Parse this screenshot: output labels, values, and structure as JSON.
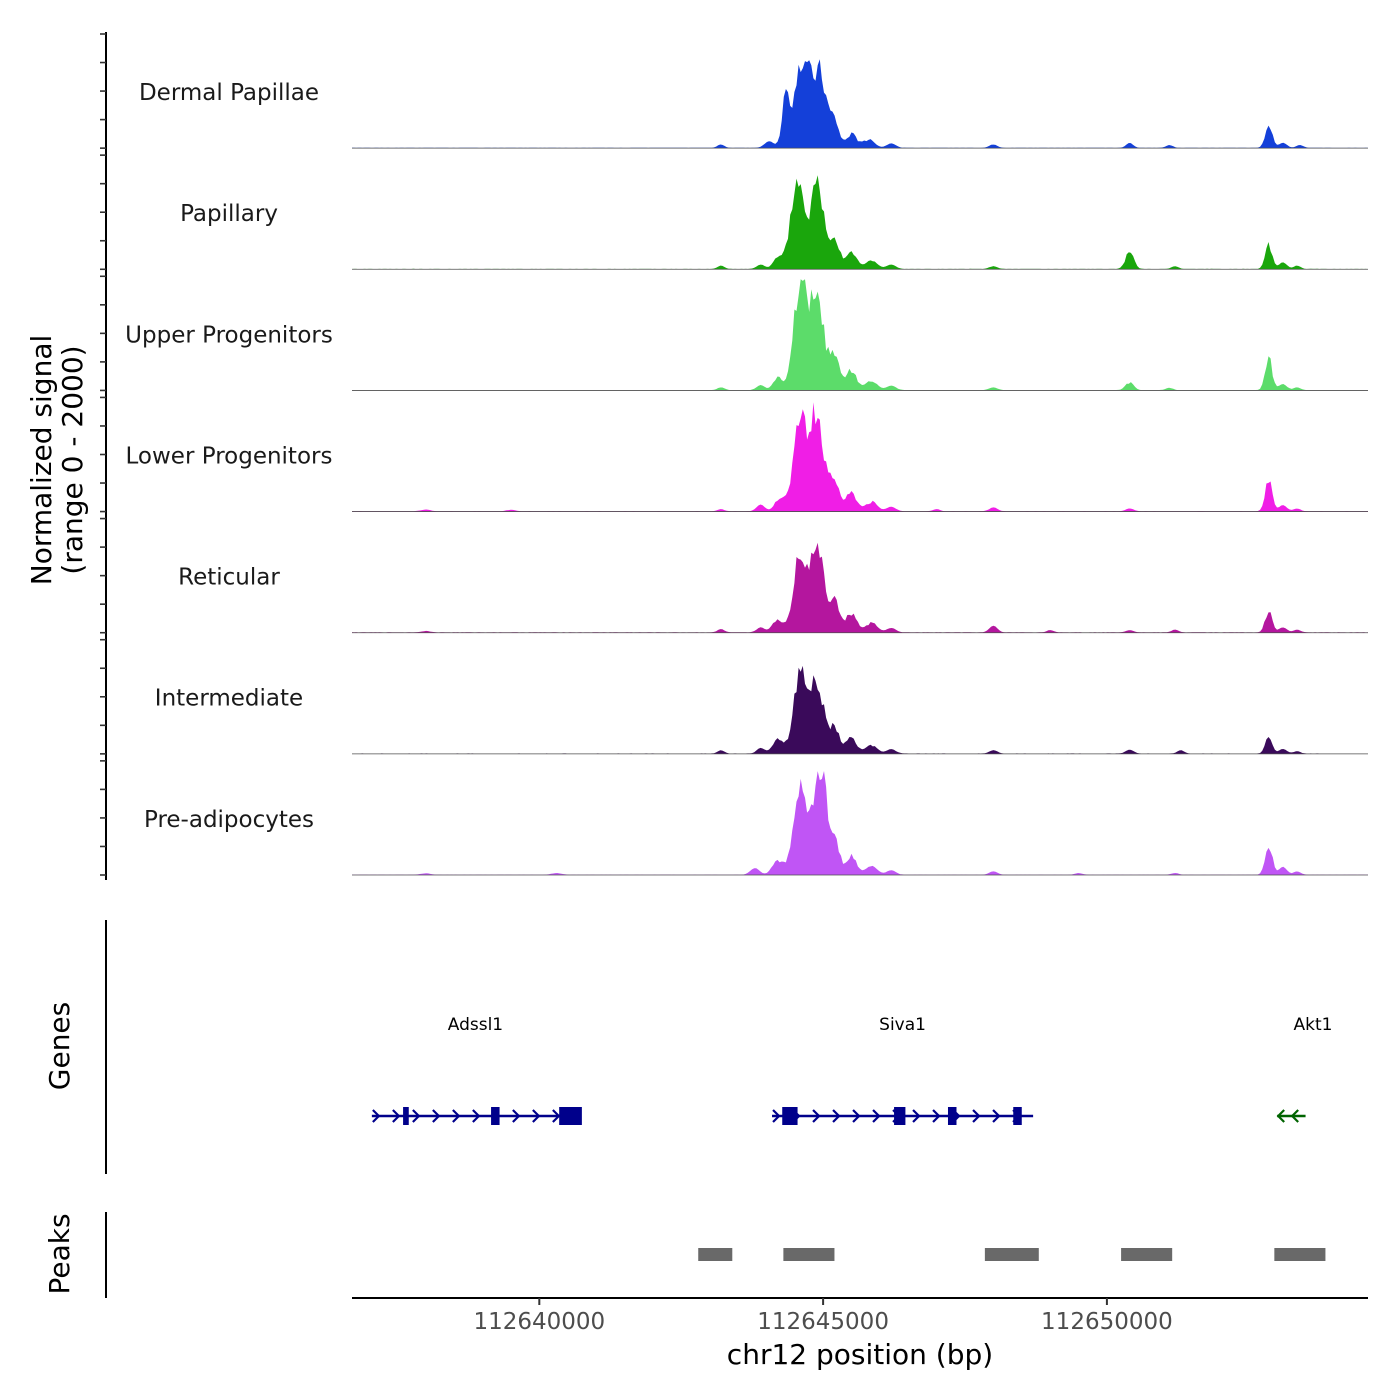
{
  "chart_data": {
    "type": "area",
    "region": {
      "chrom": "chr12",
      "start": 112636700,
      "end": 112654600
    },
    "ylim": [
      0,
      2000
    ],
    "ylabel": [
      "Normalized signal",
      "(range 0 - 2000)"
    ],
    "xlabel": "chr12 position (bp)",
    "x_ticks": [
      112640000,
      112645000,
      112650000
    ],
    "x_tick_labels": [
      "112640000",
      "112645000",
      "112650000"
    ],
    "series": [
      {
        "name": "Dermal Papillae",
        "color": "#1440d9",
        "peaks": [
          [
            112643200,
            60,
            60
          ],
          [
            112644050,
            120,
            80
          ],
          [
            112644350,
            950,
            70
          ],
          [
            112644650,
            1650,
            130
          ],
          [
            112644950,
            1350,
            110
          ],
          [
            112645200,
            500,
            80
          ],
          [
            112645500,
            260,
            90
          ],
          [
            112645800,
            160,
            100
          ],
          [
            112646200,
            80,
            80
          ],
          [
            112648000,
            60,
            70
          ],
          [
            112650400,
            90,
            60
          ],
          [
            112651100,
            50,
            60
          ],
          [
            112652850,
            450,
            60
          ],
          [
            112653100,
            90,
            70
          ],
          [
            112653400,
            50,
            60
          ]
        ]
      },
      {
        "name": "Papillary",
        "color": "#1aa60c",
        "peaks": [
          [
            112643200,
            60,
            60
          ],
          [
            112643900,
            80,
            70
          ],
          [
            112644200,
            200,
            80
          ],
          [
            112644550,
            1700,
            120
          ],
          [
            112644900,
            1650,
            110
          ],
          [
            112645200,
            600,
            90
          ],
          [
            112645500,
            340,
            90
          ],
          [
            112645850,
            160,
            100
          ],
          [
            112646200,
            80,
            80
          ],
          [
            112648000,
            50,
            70
          ],
          [
            112650400,
            350,
            70
          ],
          [
            112651200,
            50,
            60
          ],
          [
            112652850,
            450,
            60
          ],
          [
            112653100,
            120,
            70
          ],
          [
            112653350,
            60,
            60
          ]
        ]
      },
      {
        "name": "Upper Progenitors",
        "color": "#5cdc6a",
        "peaks": [
          [
            112643200,
            50,
            60
          ],
          [
            112643900,
            90,
            70
          ],
          [
            112644200,
            220,
            80
          ],
          [
            112644600,
            2000,
            120
          ],
          [
            112644900,
            1800,
            110
          ],
          [
            112645200,
            650,
            90
          ],
          [
            112645500,
            380,
            90
          ],
          [
            112645850,
            180,
            100
          ],
          [
            112646200,
            80,
            80
          ],
          [
            112648000,
            50,
            70
          ],
          [
            112650400,
            150,
            70
          ],
          [
            112651100,
            40,
            60
          ],
          [
            112652850,
            620,
            60
          ],
          [
            112653100,
            110,
            70
          ],
          [
            112653350,
            50,
            60
          ]
        ]
      },
      {
        "name": "Lower Progenitors",
        "color": "#f01ee6",
        "peaks": [
          [
            112638000,
            30,
            80
          ],
          [
            112639500,
            25,
            80
          ],
          [
            112643200,
            40,
            60
          ],
          [
            112643900,
            120,
            70
          ],
          [
            112644250,
            250,
            90
          ],
          [
            112644600,
            1800,
            120
          ],
          [
            112644900,
            1850,
            110
          ],
          [
            112645200,
            600,
            90
          ],
          [
            112645500,
            360,
            90
          ],
          [
            112645850,
            180,
            100
          ],
          [
            112646200,
            80,
            80
          ],
          [
            112647000,
            40,
            60
          ],
          [
            112648000,
            70,
            70
          ],
          [
            112650400,
            50,
            70
          ],
          [
            112652850,
            580,
            60
          ],
          [
            112653100,
            110,
            70
          ],
          [
            112653350,
            50,
            60
          ]
        ]
      },
      {
        "name": "Reticular",
        "color": "#b4169e",
        "peaks": [
          [
            112638000,
            25,
            80
          ],
          [
            112643200,
            60,
            60
          ],
          [
            112643900,
            90,
            70
          ],
          [
            112644200,
            250,
            90
          ],
          [
            112644600,
            1500,
            120
          ],
          [
            112644900,
            1650,
            110
          ],
          [
            112645200,
            650,
            90
          ],
          [
            112645500,
            360,
            90
          ],
          [
            112645850,
            180,
            100
          ],
          [
            112646200,
            80,
            80
          ],
          [
            112648000,
            120,
            70
          ],
          [
            112649000,
            40,
            60
          ],
          [
            112650400,
            40,
            70
          ],
          [
            112651200,
            50,
            60
          ],
          [
            112652850,
            400,
            60
          ],
          [
            112653100,
            90,
            70
          ],
          [
            112653350,
            50,
            60
          ]
        ]
      },
      {
        "name": "Intermediate",
        "color": "#3a0a5a",
        "peaks": [
          [
            112643200,
            60,
            60
          ],
          [
            112643900,
            100,
            70
          ],
          [
            112644200,
            250,
            90
          ],
          [
            112644600,
            1500,
            120
          ],
          [
            112644900,
            1350,
            110
          ],
          [
            112645200,
            500,
            90
          ],
          [
            112645500,
            300,
            90
          ],
          [
            112645850,
            160,
            100
          ],
          [
            112646200,
            80,
            80
          ],
          [
            112648000,
            60,
            70
          ],
          [
            112650400,
            70,
            70
          ],
          [
            112651300,
            60,
            60
          ],
          [
            112652850,
            300,
            60
          ],
          [
            112653100,
            80,
            70
          ],
          [
            112653350,
            40,
            60
          ]
        ]
      },
      {
        "name": "Pre-adipocytes",
        "color": "#c055f5",
        "peaks": [
          [
            112638000,
            25,
            80
          ],
          [
            112640300,
            30,
            80
          ],
          [
            112643800,
            120,
            80
          ],
          [
            112644200,
            280,
            90
          ],
          [
            112644600,
            1600,
            120
          ],
          [
            112644950,
            2000,
            110
          ],
          [
            112645200,
            620,
            90
          ],
          [
            112645500,
            340,
            90
          ],
          [
            112645850,
            160,
            100
          ],
          [
            112646200,
            80,
            80
          ],
          [
            112648000,
            60,
            70
          ],
          [
            112649500,
            30,
            60
          ],
          [
            112651200,
            30,
            60
          ],
          [
            112652850,
            600,
            60
          ],
          [
            112653100,
            140,
            70
          ],
          [
            112653350,
            60,
            60
          ]
        ]
      }
    ],
    "genes_track": {
      "title": "Genes",
      "genes": [
        {
          "name": "Adssl1",
          "start": 112637050,
          "end": 112640700,
          "strand": "+",
          "color": "#00008b",
          "exons": [
            [
              112637600,
              112637700
            ],
            [
              112639150,
              112639300
            ],
            [
              112640350,
              112640750
            ]
          ]
        },
        {
          "name": "Siva1",
          "start": 112644100,
          "end": 112648700,
          "strand": "+",
          "color": "#00008b",
          "exons": [
            [
              112644280,
              112644550
            ],
            [
              112646250,
              112646450
            ],
            [
              112647200,
              112647350
            ],
            [
              112648350,
              112648500
            ]
          ]
        },
        {
          "name": "Akt1",
          "start": 112653000,
          "end": 112653500,
          "strand": "-",
          "color": "#006400",
          "exons": []
        }
      ]
    },
    "peaks_track": {
      "title": "Peaks",
      "color": "#696969",
      "regions": [
        [
          112642800,
          112643400
        ],
        [
          112644300,
          112645200
        ],
        [
          112647850,
          112648800
        ],
        [
          112650250,
          112651150
        ],
        [
          112652950,
          112653850
        ]
      ]
    }
  }
}
